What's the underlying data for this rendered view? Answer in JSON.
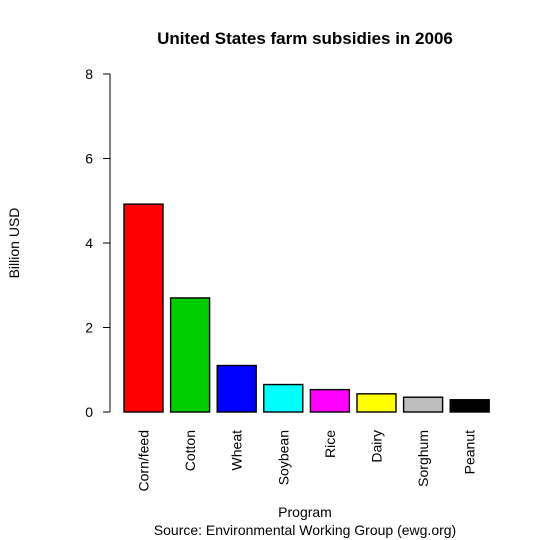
{
  "chart_data": {
    "type": "bar",
    "title": "United States farm subsidies in 2006",
    "xlabel": "Program",
    "ylabel": "Billion USD",
    "caption": "Source:  Environmental Working Group (ewg.org)",
    "categories": [
      "Corn/feed",
      "Cotton",
      "Wheat",
      "Soybean",
      "Rice",
      "Dairy",
      "Sorghum",
      "Peanut"
    ],
    "values": [
      4.92,
      2.7,
      1.1,
      0.65,
      0.53,
      0.43,
      0.35,
      0.29
    ],
    "colors": [
      "#ff0000",
      "#00cd00",
      "#0000ff",
      "#00ffff",
      "#ff00ff",
      "#ffff00",
      "#bebebe",
      "#000000"
    ],
    "ylim": [
      0,
      8
    ],
    "yticks": [
      0,
      2,
      4,
      6,
      8
    ],
    "grid": false,
    "legend": "none"
  }
}
